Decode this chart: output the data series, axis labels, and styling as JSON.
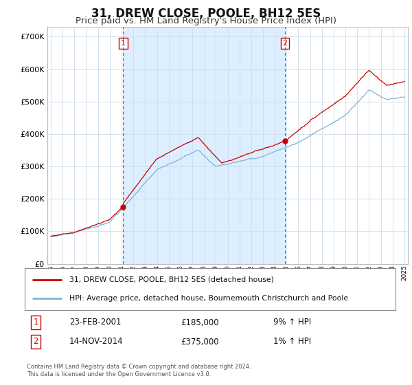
{
  "title": "31, DREW CLOSE, POOLE, BH12 5ES",
  "subtitle": "Price paid vs. HM Land Registry's House Price Index (HPI)",
  "ylim": [
    0,
    730000
  ],
  "yticks": [
    0,
    100000,
    200000,
    300000,
    400000,
    500000,
    600000,
    700000
  ],
  "xlim_left": 1994.7,
  "xlim_right": 2025.3,
  "sale1_year": 2001.14,
  "sale1_price": 185000,
  "sale2_year": 2014.87,
  "sale2_price": 375000,
  "sale1_date": "23-FEB-2001",
  "sale1_hpi_text": "9% ↑ HPI",
  "sale2_date": "14-NOV-2014",
  "sale2_hpi_text": "1% ↑ HPI",
  "line_color_property": "#cc0000",
  "line_color_hpi": "#7eb5d6",
  "dashed_line_color": "#cc3333",
  "shade_color": "#ddeeff",
  "grid_color": "#ccddee",
  "legend_label_property": "31, DREW CLOSE, POOLE, BH12 5ES (detached house)",
  "legend_label_hpi": "HPI: Average price, detached house, Bournemouth Christchurch and Poole",
  "footnote": "Contains HM Land Registry data © Crown copyright and database right 2024.\nThis data is licensed under the Open Government Licence v3.0.",
  "title_fontsize": 12,
  "subtitle_fontsize": 9.5
}
